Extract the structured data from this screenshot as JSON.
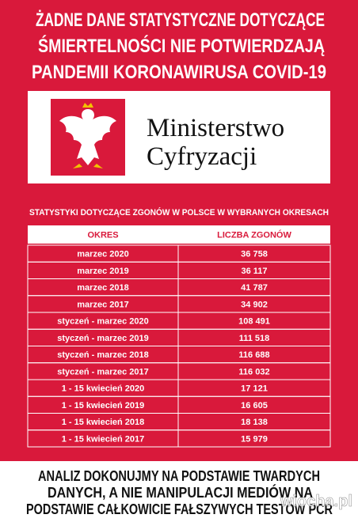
{
  "header": {
    "lines": [
      "ŻADNE DANE STATYSTYCZNE DOTYCZĄCE",
      "ŚMIERTELNOŚCI NIE POTWIERDZAJĄ",
      "PANDEMII KORONAWIRUSA COVID-19"
    ]
  },
  "logo": {
    "lines": [
      "Ministerstwo",
      "Cyfryzacji"
    ]
  },
  "table": {
    "title": "STATYSTYKI DOTYCZĄCE ZGONÓW  W POLSCE W WYBRANYCH OKRESACH",
    "columns": [
      "OKRES",
      "LICZBA ZGONÓW"
    ],
    "rows": [
      [
        "marzec 2020",
        "36 758"
      ],
      [
        "marzec 2019",
        "36 117"
      ],
      [
        "marzec 2018",
        "41 787"
      ],
      [
        "marzec 2017",
        "34 902"
      ],
      [
        "styczeń - marzec 2020",
        "108 491"
      ],
      [
        "styczeń - marzec 2019",
        "111 518"
      ],
      [
        "styczeń - marzec 2018",
        "116 688"
      ],
      [
        "styczeń - marzec 2017",
        "116 032"
      ],
      [
        "1 - 15 kwiecień 2020",
        "17 121"
      ],
      [
        "1 - 15 kwiecień 2019",
        "16 605"
      ],
      [
        "1 - 15 kwiecień 2018",
        "18 138"
      ],
      [
        "1 - 15 kwiecień 2017",
        "15 979"
      ]
    ]
  },
  "footer": {
    "lines": [
      "ANALIZ DOKONUJMY NA PODSTAWIE TWARDYCH",
      "DANYCH, A NIE MANIPULACJI MEDIÓW NA",
      "PODSTAWIE CAŁKOWICIE FAŁSZYWYCH TESTÓW PCR"
    ]
  },
  "watermark": "wiocha.pl"
}
